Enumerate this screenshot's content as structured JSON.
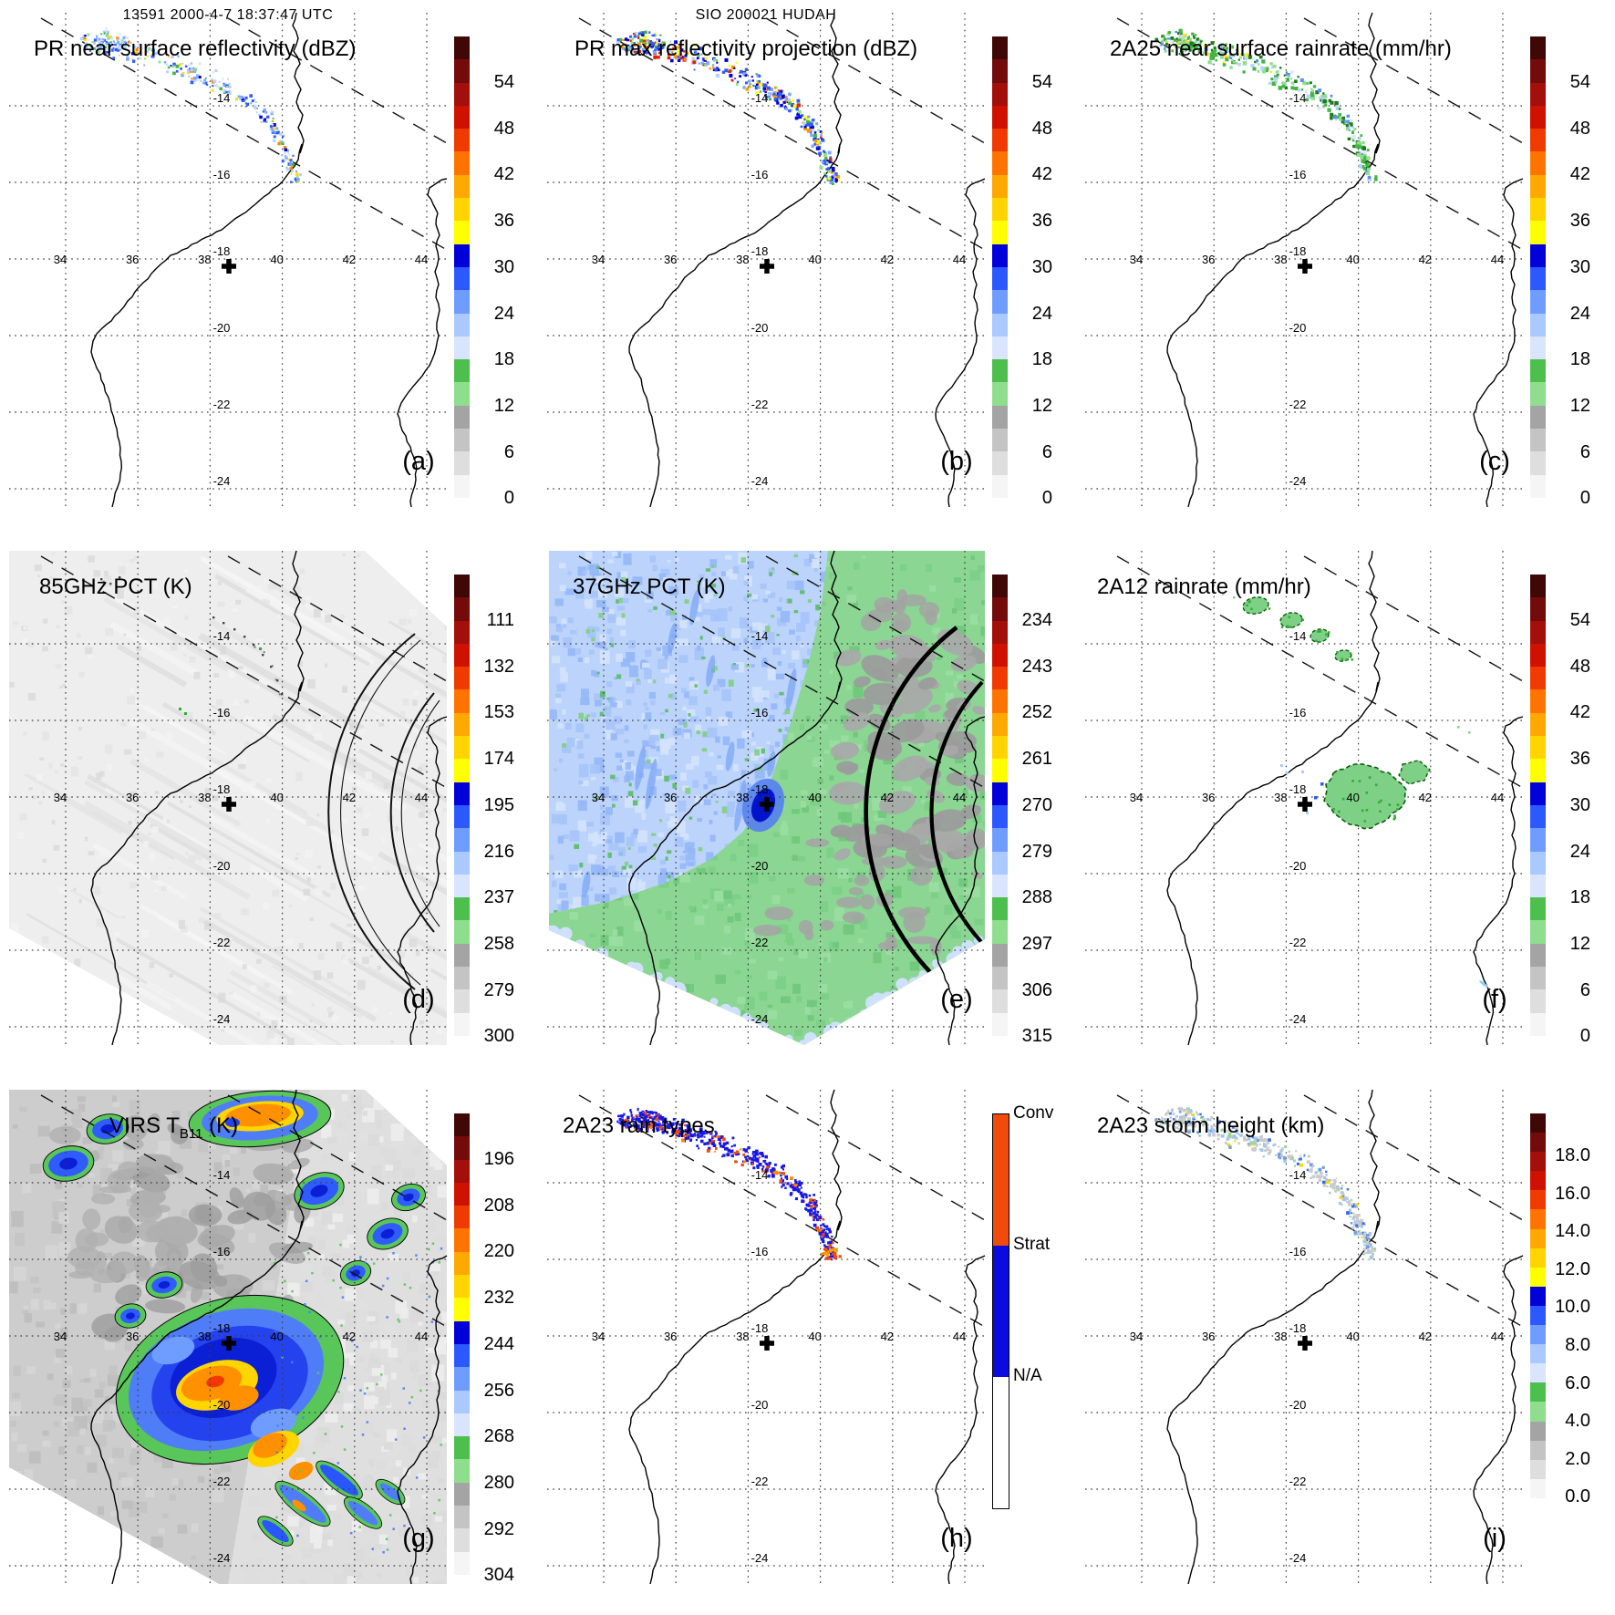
{
  "figure": {
    "suptitle_left": "13591 2000-4-7 18:37:47 UTC",
    "suptitle_center": "SIO 200021 HUDAH"
  },
  "map": {
    "lon_labels": [
      "34",
      "36",
      "38",
      "40",
      "42",
      "44"
    ],
    "lat_labels": [
      "-14",
      "-16",
      "-18",
      "-20",
      "-22",
      "-24"
    ],
    "marker": "+"
  },
  "colors": {
    "scale20_top_to_bottom": [
      "#400707",
      "#730b0b",
      "#a30f0a",
      "#cf1100",
      "#ef3b00",
      "#ff7400",
      "#ffa800",
      "#ffd400",
      "#ffff00",
      "#0000d9",
      "#2c58ff",
      "#6f9dff",
      "#a9c9ff",
      "#d9e4ff",
      "#4dbf4d",
      "#8ede8e",
      "#a4a4a4",
      "#c4c4c4",
      "#dedede",
      "#f5f5f5"
    ],
    "rain3": [
      "#f24a0a",
      "#0b0bdd",
      "#ffffff"
    ],
    "coast": "#000000",
    "grid": "#3a3a3a"
  },
  "panels": [
    {
      "id": "a",
      "letter": "(a)",
      "suptitle": "13591 2000-4-7 18:37:47 UTC",
      "title": "PR near surface reflectivity (dBZ)",
      "colorbar": {
        "type": "scale20",
        "labels": [
          "54",
          "48",
          "42",
          "36",
          "30",
          "24",
          "18",
          "12",
          "6",
          "0"
        ]
      }
    },
    {
      "id": "b",
      "letter": "(b)",
      "suptitle": "SIO 200021 HUDAH",
      "title": "PR max reflectivity projection (dBZ)",
      "colorbar": {
        "type": "scale20",
        "labels": [
          "54",
          "48",
          "42",
          "36",
          "30",
          "24",
          "18",
          "12",
          "6",
          "0"
        ]
      }
    },
    {
      "id": "c",
      "letter": "(c)",
      "title": "2A25 near surface rainrate (mm/hr)",
      "colorbar": {
        "type": "scale20",
        "labels": [
          "54",
          "48",
          "42",
          "36",
          "30",
          "24",
          "18",
          "12",
          "6",
          "0"
        ]
      }
    },
    {
      "id": "d",
      "letter": "(d)",
      "title": "85GHz PCT (K)",
      "colorbar": {
        "type": "scale20",
        "labels": [
          "111",
          "132",
          "153",
          "174",
          "195",
          "216",
          "237",
          "258",
          "279",
          "300"
        ]
      }
    },
    {
      "id": "e",
      "letter": "(e)",
      "title": "37GHz PCT (K)",
      "colorbar": {
        "type": "scale20",
        "labels": [
          "234",
          "243",
          "252",
          "261",
          "270",
          "279",
          "288",
          "297",
          "306",
          "315"
        ]
      }
    },
    {
      "id": "f",
      "letter": "(f)",
      "title": "2A12 rainrate (mm/hr)",
      "colorbar": {
        "type": "scale20",
        "labels": [
          "54",
          "48",
          "42",
          "36",
          "30",
          "24",
          "18",
          "12",
          "6",
          "0"
        ]
      }
    },
    {
      "id": "g",
      "letter": "(g)",
      "title_pre": "VIRS T",
      "title_sub": "B11",
      "title_post": " (K)",
      "colorbar": {
        "type": "scale20",
        "labels": [
          "196",
          "208",
          "220",
          "232",
          "244",
          "256",
          "268",
          "280",
          "292",
          "304"
        ]
      }
    },
    {
      "id": "h",
      "letter": "(h)",
      "title": "2A23 rain types",
      "colorbar": {
        "type": "rain3",
        "labels": [
          "Conv",
          "Strat",
          "N/A"
        ]
      }
    },
    {
      "id": "i",
      "letter": "(i)",
      "title": "2A23 storm height (km)",
      "colorbar": {
        "type": "scale20short",
        "labels": [
          "18.0",
          "16.0",
          "14.0",
          "12.0",
          "10.0",
          "8.0",
          "6.0",
          "4.0",
          "2.0",
          "0.0"
        ]
      }
    }
  ],
  "chart_data": {
    "type": "heatmap",
    "layout": "3x3 satellite overpass map panels (TRMM-style)",
    "orbit_header": "13591 2000-4-7 18:37:47 UTC",
    "storm_header": "SIO 200021 HUDAH",
    "map_extent": {
      "lon_ticks": [
        34,
        36,
        38,
        40,
        42,
        44
      ],
      "lat_ticks": [
        -14,
        -16,
        -18,
        -20,
        -22,
        -24
      ]
    },
    "panels": [
      {
        "label": "(a)",
        "title": "PR near surface reflectivity (dBZ)",
        "colorbar_ticks": [
          54,
          48,
          42,
          36,
          30,
          24,
          18,
          12,
          6,
          0
        ]
      },
      {
        "label": "(b)",
        "title": "PR max reflectivity projection (dBZ)",
        "colorbar_ticks": [
          54,
          48,
          42,
          36,
          30,
          24,
          18,
          12,
          6,
          0
        ]
      },
      {
        "label": "(c)",
        "title": "2A25 near surface rainrate (mm/hr)",
        "colorbar_ticks": [
          54,
          48,
          42,
          36,
          30,
          24,
          18,
          12,
          6,
          0
        ]
      },
      {
        "label": "(d)",
        "title": "85GHz PCT (K)",
        "colorbar_ticks": [
          111,
          132,
          153,
          174,
          195,
          216,
          237,
          258,
          279,
          300
        ]
      },
      {
        "label": "(e)",
        "title": "37GHz PCT (K)",
        "colorbar_ticks": [
          234,
          243,
          252,
          261,
          270,
          279,
          288,
          297,
          306,
          315
        ]
      },
      {
        "label": "(f)",
        "title": "2A12 rainrate (mm/hr)",
        "colorbar_ticks": [
          54,
          48,
          42,
          36,
          30,
          24,
          18,
          12,
          6,
          0
        ]
      },
      {
        "label": "(g)",
        "title": "VIRS TB11 (K)",
        "colorbar_ticks": [
          196,
          208,
          220,
          232,
          244,
          256,
          268,
          280,
          292,
          304
        ]
      },
      {
        "label": "(h)",
        "title": "2A23 rain types",
        "colorbar_categories": [
          "Conv",
          "Strat",
          "N/A"
        ]
      },
      {
        "label": "(i)",
        "title": "2A23 storm height (km)",
        "colorbar_ticks": [
          18.0,
          16.0,
          14.0,
          12.0,
          10.0,
          8.0,
          6.0,
          4.0,
          2.0,
          0.0
        ]
      }
    ]
  }
}
